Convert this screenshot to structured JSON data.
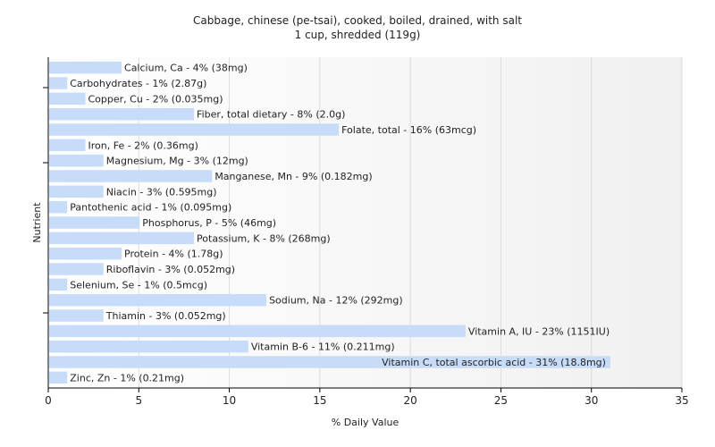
{
  "chart_data": {
    "type": "bar",
    "orientation": "horizontal",
    "title": "Cabbage, chinese (pe-tsai), cooked, boiled, drained, with salt",
    "subtitle": "1 cup, shredded (119g)",
    "xlabel": "% Daily Value",
    "ylabel": "Nutrient",
    "xlim": [
      0,
      35
    ],
    "xticks": [
      0,
      5,
      10,
      15,
      20,
      25,
      30,
      35
    ],
    "grid": true,
    "bar_color": "#c6dcf8",
    "bars": [
      {
        "category": "Calcium, Ca",
        "value": 4,
        "label": "Calcium, Ca - 4% (38mg)"
      },
      {
        "category": "Carbohydrates",
        "value": 1,
        "label": "Carbohydrates - 1% (2.87g)"
      },
      {
        "category": "Copper, Cu",
        "value": 2,
        "label": "Copper, Cu - 2% (0.035mg)"
      },
      {
        "category": "Fiber, total dietary",
        "value": 8,
        "label": "Fiber, total dietary - 8% (2.0g)"
      },
      {
        "category": "Folate, total",
        "value": 16,
        "label": "Folate, total - 16% (63mcg)"
      },
      {
        "category": "Iron, Fe",
        "value": 2,
        "label": "Iron, Fe - 2% (0.36mg)"
      },
      {
        "category": "Magnesium, Mg",
        "value": 3,
        "label": "Magnesium, Mg - 3% (12mg)"
      },
      {
        "category": "Manganese, Mn",
        "value": 9,
        "label": "Manganese, Mn - 9% (0.182mg)"
      },
      {
        "category": "Niacin",
        "value": 3,
        "label": "Niacin - 3% (0.595mg)"
      },
      {
        "category": "Pantothenic acid",
        "value": 1,
        "label": "Pantothenic acid - 1% (0.095mg)"
      },
      {
        "category": "Phosphorus, P",
        "value": 5,
        "label": "Phosphorus, P - 5% (46mg)"
      },
      {
        "category": "Potassium, K",
        "value": 8,
        "label": "Potassium, K - 8% (268mg)"
      },
      {
        "category": "Protein",
        "value": 4,
        "label": "Protein - 4% (1.78g)"
      },
      {
        "category": "Riboflavin",
        "value": 3,
        "label": "Riboflavin - 3% (0.052mg)"
      },
      {
        "category": "Selenium, Se",
        "value": 1,
        "label": "Selenium, Se - 1% (0.5mcg)"
      },
      {
        "category": "Sodium, Na",
        "value": 12,
        "label": "Sodium, Na - 12% (292mg)"
      },
      {
        "category": "Thiamin",
        "value": 3,
        "label": "Thiamin - 3% (0.052mg)"
      },
      {
        "category": "Vitamin A, IU",
        "value": 23,
        "label": "Vitamin A, IU - 23% (1151IU)"
      },
      {
        "category": "Vitamin B-6",
        "value": 11,
        "label": "Vitamin B-6 - 11% (0.211mg)"
      },
      {
        "category": "Vitamin C, total ascorbic acid",
        "value": 31,
        "label": "Vitamin C, total ascorbic acid - 31% (18.8mg)"
      },
      {
        "category": "Zinc, Zn",
        "value": 1,
        "label": "Zinc, Zn - 1% (0.21mg)"
      }
    ]
  }
}
